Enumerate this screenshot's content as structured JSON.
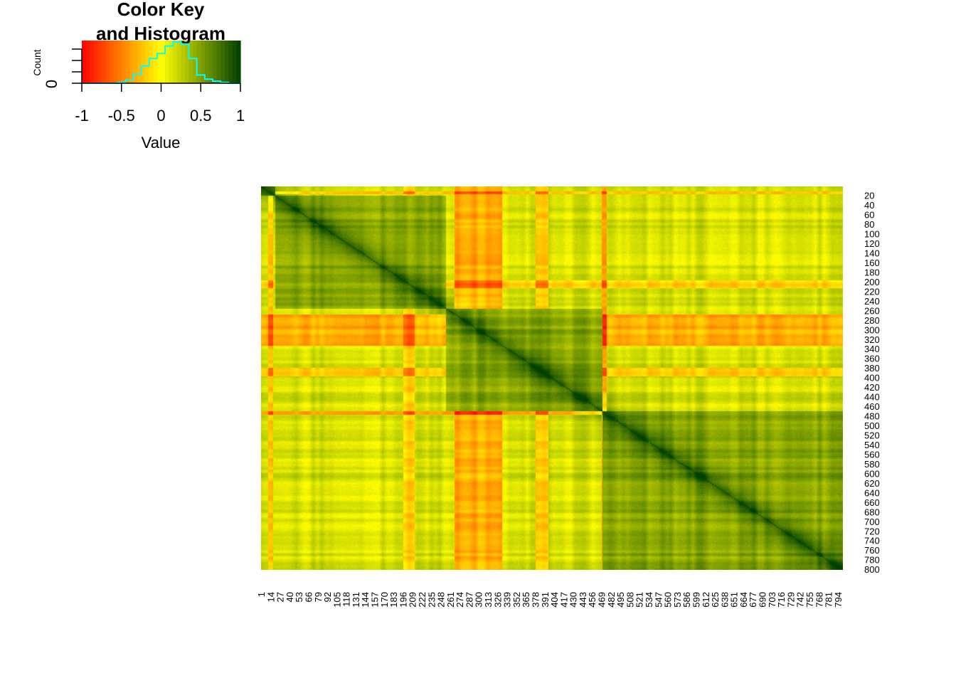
{
  "chart_data": [
    {
      "type": "histogram",
      "title_line1": "Color Key",
      "title_line2": "and Histogram",
      "xlabel": "Value",
      "ylabel": "Count",
      "xlim": [
        -1,
        1
      ],
      "x_ticks": [
        "-1",
        "-0.5",
        "0",
        "0.5",
        "1"
      ],
      "y_tick_label": "0",
      "color_scale": [
        "#FF0000",
        "#FF4000",
        "#FF8000",
        "#FFC000",
        "#FFFF00",
        "#C0D800",
        "#80B000",
        "#408800",
        "#006000",
        "#004000"
      ],
      "histogram_color": "#00FFFF",
      "histogram_bins": [
        {
          "x": -0.6,
          "density": 0.0
        },
        {
          "x": -0.5,
          "density": 0.02
        },
        {
          "x": -0.4,
          "density": 0.08
        },
        {
          "x": -0.3,
          "density": 0.22
        },
        {
          "x": -0.2,
          "density": 0.42
        },
        {
          "x": -0.1,
          "density": 0.6
        },
        {
          "x": 0.0,
          "density": 0.72
        },
        {
          "x": 0.1,
          "density": 0.9
        },
        {
          "x": 0.2,
          "density": 1.0
        },
        {
          "x": 0.3,
          "density": 0.95
        },
        {
          "x": 0.4,
          "density": 0.6
        },
        {
          "x": 0.5,
          "density": 0.2
        },
        {
          "x": 0.6,
          "density": 0.1
        },
        {
          "x": 0.7,
          "density": 0.05
        },
        {
          "x": 0.8,
          "density": 0.02
        },
        {
          "x": 0.9,
          "density": 0.0
        }
      ]
    },
    {
      "type": "heatmap",
      "n": 800,
      "value_range": [
        -1,
        1
      ],
      "diagonal_value": 1,
      "row_labels": [
        "20",
        "40",
        "60",
        "80",
        "100",
        "120",
        "140",
        "160",
        "180",
        "200",
        "220",
        "240",
        "260",
        "280",
        "300",
        "320",
        "340",
        "360",
        "380",
        "400",
        "420",
        "440",
        "460",
        "480",
        "500",
        "520",
        "540",
        "560",
        "580",
        "600",
        "620",
        "640",
        "660",
        "680",
        "700",
        "720",
        "740",
        "760",
        "780",
        "800"
      ],
      "col_labels": [
        "1",
        "14",
        "27",
        "40",
        "53",
        "66",
        "79",
        "92",
        "105",
        "118",
        "131",
        "144",
        "157",
        "170",
        "183",
        "196",
        "209",
        "222",
        "235",
        "248",
        "261",
        "274",
        "287",
        "300",
        "313",
        "326",
        "339",
        "352",
        "365",
        "378",
        "391",
        "404",
        "417",
        "430",
        "443",
        "456",
        "469",
        "482",
        "495",
        "508",
        "521",
        "534",
        "547",
        "560",
        "573",
        "586",
        "599",
        "612",
        "625",
        "638",
        "651",
        "664",
        "677",
        "690",
        "703",
        "716",
        "729",
        "742",
        "755",
        "768",
        "781",
        "794"
      ],
      "blocks": [
        {
          "start": 1,
          "end": 20,
          "within": 0.55
        },
        {
          "start": 20,
          "end": 255,
          "within": 0.55
        },
        {
          "start": 255,
          "end": 470,
          "within": 0.5
        },
        {
          "start": 470,
          "end": 800,
          "within": 0.55
        }
      ],
      "negative_bands": [
        {
          "lo": 267,
          "hi": 331,
          "strength": 0.55
        },
        {
          "lo": 378,
          "hi": 395,
          "strength": 0.5
        },
        {
          "lo": 469,
          "hi": 475,
          "strength": 0.6
        },
        {
          "lo": 10,
          "hi": 16,
          "strength": 0.45
        },
        {
          "lo": 196,
          "hi": 211,
          "strength": 0.35
        }
      ]
    }
  ]
}
